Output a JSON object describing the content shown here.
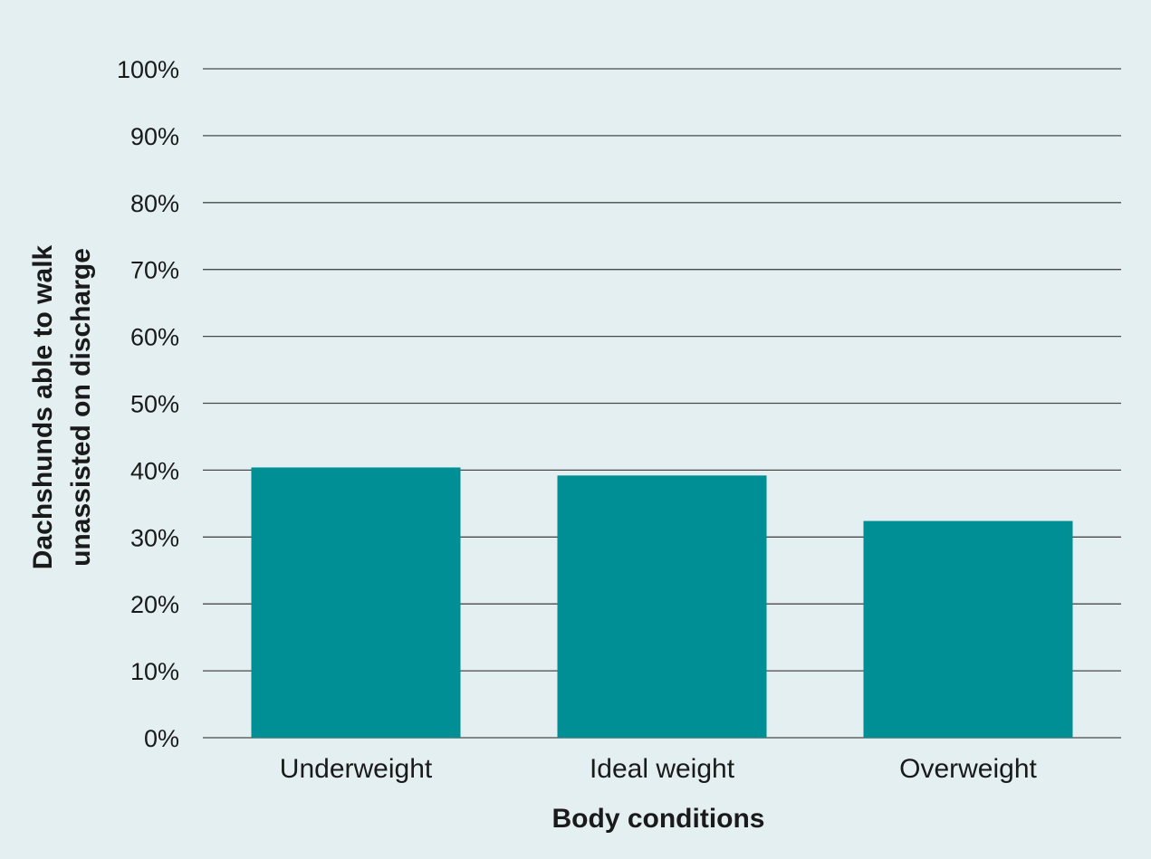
{
  "colors": {
    "background": "#e3eff0",
    "bar": "#008f94",
    "grid": "#4a4a4a",
    "text": "#1a1a1a"
  },
  "chart_data": {
    "type": "bar",
    "categories": [
      "Underweight",
      "Ideal weight",
      "Overweight"
    ],
    "values": [
      40.4,
      39.2,
      32.4
    ],
    "value_unit": "%",
    "title": "",
    "xlabel": "Body conditions",
    "ylabel_lines": [
      "Dachshunds able to walk",
      "unassisted on discharge"
    ],
    "ylim": [
      0,
      100
    ],
    "yticks": [
      0,
      10,
      20,
      30,
      40,
      50,
      60,
      70,
      80,
      90,
      100
    ],
    "ytick_labels": [
      "0%",
      "10%",
      "20%",
      "30%",
      "40%",
      "50%",
      "60%",
      "70%",
      "80%",
      "90%",
      "100%"
    ],
    "grid": true,
    "legend": "none"
  }
}
